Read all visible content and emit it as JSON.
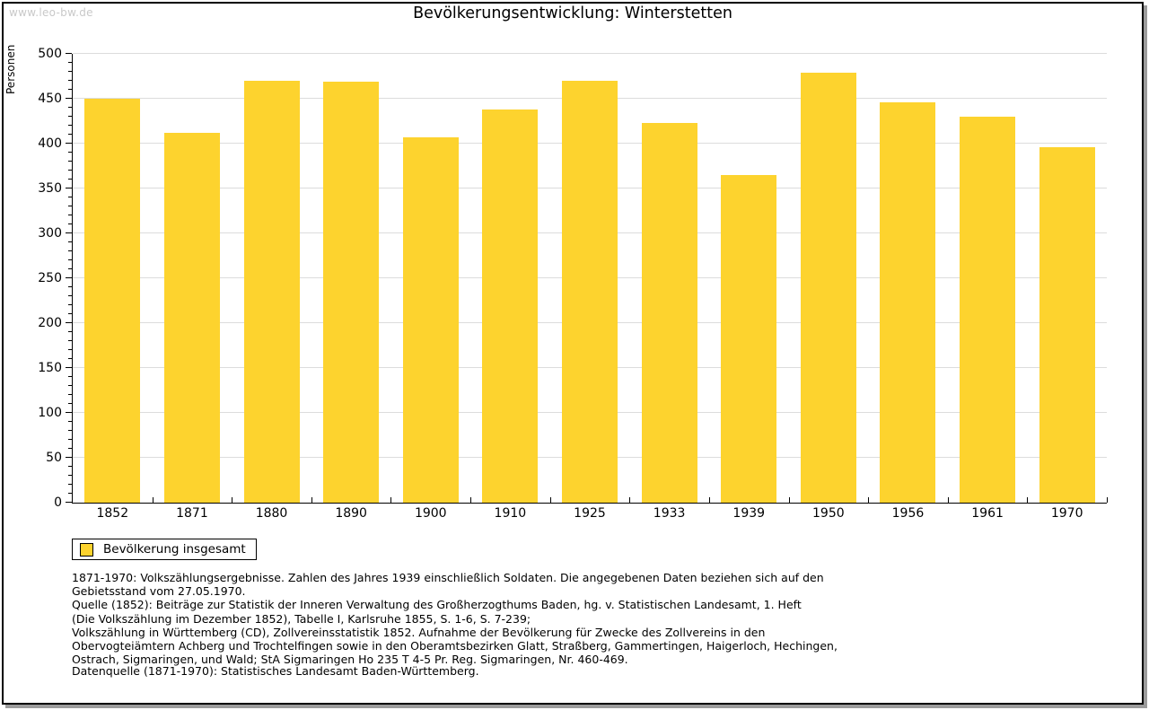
{
  "watermark": "www.leo-bw.de",
  "header": {
    "title": "Bevölkerungsentwicklung: Winterstetten"
  },
  "chart_data": {
    "type": "bar",
    "title": "Bevölkerungsentwicklung: Winterstetten",
    "categories": [
      "1852",
      "1871",
      "1880",
      "1890",
      "1900",
      "1910",
      "1925",
      "1933",
      "1939",
      "1950",
      "1956",
      "1961",
      "1970"
    ],
    "values": [
      450,
      412,
      470,
      469,
      407,
      438,
      470,
      423,
      365,
      479,
      446,
      430,
      396
    ],
    "xlabel": "",
    "ylabel": "Personen",
    "ylim": [
      0,
      500
    ],
    "ytick_step": 50,
    "y_minor_step": 10,
    "grid": true,
    "legend_position": "bottom-left",
    "legend_entries": [
      "Bevölkerung insgesamt"
    ]
  },
  "legend": {
    "label": "Bevölkerung insgesamt"
  },
  "colors": {
    "bar": "#fdd32e",
    "grid": "#dcdcdc",
    "axis": "#000000",
    "watermark": "#c9c9c9"
  },
  "footer": {
    "lines": [
      "1871-1970: Volkszählungsergebnisse. Zahlen des Jahres 1939 einschließlich Soldaten. Die angegebenen Daten beziehen sich auf den",
      "Gebietsstand vom 27.05.1970.",
      "Quelle (1852): Beiträge zur Statistik der Inneren Verwaltung des Großherzogthums Baden, hg. v. Statistischen Landesamt, 1. Heft",
      "(Die Volkszählung im Dezember 1852), Tabelle I, Karlsruhe 1855, S. 1-6, S. 7-239;",
      "Volkszählung in Württemberg (CD), Zollvereinsstatistik 1852. Aufnahme der Bevölkerung für Zwecke des Zollvereins in den",
      "Obervogteiämtern Achberg und Trochtelfingen sowie in den Oberamtsbezirken Glatt, Straßberg, Gammertingen, Haigerloch, Hechingen,",
      "Ostrach, Sigmaringen, und Wald; StA Sigmaringen Ho 235 T 4-5 Pr. Reg. Sigmaringen, Nr. 460-469."
    ],
    "datasource": "Datenquelle (1871-1970): Statistisches Landesamt Baden-Württemberg."
  }
}
